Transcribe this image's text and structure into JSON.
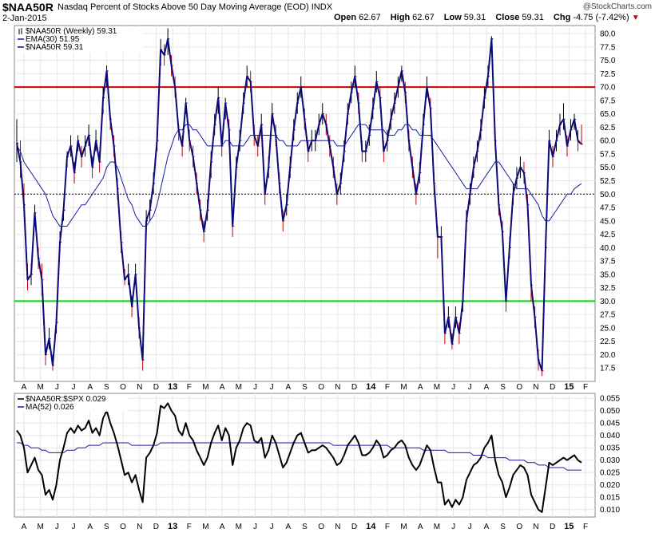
{
  "header": {
    "ticker": "$NAA50R",
    "description": "Nasdaq Percent of Stocks Above 50 Day Moving Average (EOD)",
    "exchange": "INDX",
    "date": "2-Jan-2015",
    "copyright": "@StockCharts.com",
    "open_label": "Open",
    "open": "62.67",
    "high_label": "High",
    "high": "62.67",
    "low_label": "Low",
    "low": "59.31",
    "close_label": "Close",
    "close": "59.31",
    "chg_label": "Chg",
    "chg": "-4.75 (-7.42%)",
    "chg_arrow": "▼"
  },
  "colors": {
    "price": "#0a0a7a",
    "up_bar": "#000000",
    "down_bar": "#cc0000",
    "ema": "#1a1a9e",
    "overbought": "#cc0000",
    "oversold": "#00dd00",
    "ratio": "#000000",
    "ma": "#1a1a9e"
  },
  "chart_data": [
    {
      "type": "line",
      "title": "$NAA50R (Weekly) 59.31",
      "legend": [
        {
          "label": "$NAA50R (Weekly) 59.31",
          "kind": "ohlc"
        },
        {
          "label": "EMA(30) 51.95",
          "kind": "line"
        },
        {
          "label": "$NAA50R 59.31",
          "kind": "line"
        }
      ],
      "ylim": [
        15,
        81.5
      ],
      "yticks": [
        17.5,
        20,
        22.5,
        25,
        27.5,
        30,
        32.5,
        35,
        37.5,
        40,
        42.5,
        45,
        47.5,
        50,
        52.5,
        55,
        57.5,
        60,
        62.5,
        65,
        67.5,
        70,
        72.5,
        75,
        77.5,
        80
      ],
      "ytick_labels": [
        "17.5",
        "20.0",
        "22.5",
        "25.0",
        "27.5",
        "30.0",
        "32.5",
        "35.0",
        "37.5",
        "40.0",
        "42.5",
        "45.0",
        "47.5",
        "50.0",
        "52.5",
        "55.0",
        "57.5",
        "60.0",
        "62.5",
        "65.0",
        "67.5",
        "70.0",
        "72.5",
        "75.0",
        "77.5",
        "80.0"
      ],
      "reference_lines": [
        {
          "value": 70,
          "style": "overbought"
        },
        {
          "value": 50,
          "style": "dashed"
        },
        {
          "value": 30,
          "style": "oversold"
        }
      ],
      "x_labels": [
        "A",
        "M",
        "J",
        "J",
        "A",
        "S",
        "O",
        "N",
        "D",
        "13",
        "F",
        "M",
        "A",
        "M",
        "J",
        "J",
        "A",
        "S",
        "O",
        "N",
        "D",
        "14",
        "F",
        "M",
        "A",
        "M",
        "J",
        "J",
        "A",
        "S",
        "O",
        "N",
        "D",
        "15",
        "F"
      ],
      "close": [
        59.5,
        56,
        48,
        34,
        35,
        46.5,
        38,
        34,
        20,
        23,
        18,
        26,
        41,
        47,
        57,
        59,
        54,
        60,
        57,
        59,
        61,
        55,
        60,
        56,
        68,
        73,
        64,
        59,
        51,
        41,
        34,
        35,
        29,
        35,
        25,
        19,
        45,
        47,
        52,
        60,
        77,
        76,
        79,
        74,
        70,
        62,
        59,
        67,
        60,
        57,
        52,
        47,
        43,
        47,
        56,
        63,
        68,
        59,
        67,
        62,
        44,
        55,
        60,
        67,
        72,
        71,
        61,
        59,
        63,
        50,
        55,
        65,
        61,
        52,
        45,
        48,
        55,
        62,
        67,
        70,
        64,
        58,
        60,
        60,
        63,
        65,
        63,
        59,
        55,
        50,
        52,
        58,
        65,
        69,
        72,
        67,
        58,
        58,
        61,
        66,
        71,
        68,
        58,
        60,
        64,
        67,
        70,
        73,
        69,
        60,
        55,
        50,
        54,
        63,
        70,
        66,
        52,
        42,
        42,
        24,
        27,
        22,
        27,
        24,
        30,
        45,
        50,
        55,
        58,
        62,
        68,
        72,
        79,
        60,
        48,
        43,
        30,
        40,
        50,
        53,
        55,
        54,
        48,
        33,
        27,
        19,
        17,
        40,
        60,
        57,
        60,
        63,
        64,
        59,
        62,
        64,
        60,
        59.31
      ],
      "high": [
        64,
        60,
        52,
        37,
        37,
        48,
        40,
        37,
        22,
        25,
        20,
        28,
        43,
        48,
        58,
        61,
        56,
        61,
        59,
        61,
        63,
        57,
        62,
        58,
        70,
        74,
        65,
        61,
        53,
        43,
        36,
        37,
        31,
        37,
        27,
        21,
        47,
        49,
        54,
        62,
        79,
        78,
        81,
        76,
        72,
        63,
        61,
        68,
        62,
        59,
        54,
        49,
        45,
        49,
        58,
        65,
        70,
        61,
        68,
        64,
        46,
        57,
        62,
        69,
        74,
        73,
        63,
        61,
        65,
        52,
        57,
        67,
        63,
        54,
        47,
        50,
        57,
        64,
        69,
        72,
        66,
        60,
        62,
        62,
        65,
        67,
        65,
        61,
        57,
        52,
        54,
        60,
        67,
        71,
        74,
        69,
        60,
        60,
        63,
        68,
        73,
        70,
        60,
        62,
        66,
        69,
        72,
        74,
        71,
        62,
        57,
        52,
        56,
        65,
        72,
        68,
        54,
        44,
        44,
        26,
        29,
        24,
        29,
        26,
        32,
        47,
        52,
        57,
        60,
        64,
        70,
        74,
        79.5,
        62,
        50,
        45,
        32,
        42,
        52,
        55,
        57,
        56,
        50,
        35,
        29,
        21,
        19,
        42,
        62,
        59,
        62,
        65,
        67,
        61,
        64,
        65,
        62,
        63
      ],
      "low": [
        56,
        53,
        46,
        32,
        33,
        44,
        36,
        31,
        18,
        21,
        17,
        24,
        39,
        45,
        55,
        57,
        52,
        58,
        55,
        57,
        59,
        53,
        58,
        54,
        65,
        70,
        62,
        57,
        49,
        39,
        33,
        33,
        27,
        33,
        23,
        17,
        43,
        45,
        50,
        58,
        74,
        74,
        76,
        72,
        68,
        60,
        57,
        65,
        58,
        55,
        50,
        45,
        41,
        45,
        53,
        61,
        65,
        57,
        64,
        59,
        42,
        53,
        58,
        65,
        70,
        69,
        59,
        57,
        61,
        48,
        53,
        63,
        59,
        50,
        43,
        46,
        53,
        60,
        65,
        68,
        62,
        56,
        58,
        58,
        61,
        63,
        61,
        57,
        53,
        48,
        50,
        56,
        63,
        67,
        70,
        65,
        56,
        56,
        59,
        64,
        69,
        66,
        56,
        58,
        62,
        65,
        68,
        71,
        67,
        58,
        53,
        48,
        52,
        61,
        68,
        64,
        50,
        38,
        40,
        22,
        25,
        21,
        25,
        22,
        28,
        43,
        48,
        53,
        56,
        60,
        66,
        70,
        77,
        58,
        46,
        41,
        28,
        38,
        48,
        51,
        53,
        52,
        46,
        30,
        25,
        17,
        16,
        38,
        58,
        55,
        58,
        61,
        62,
        57,
        60,
        62,
        58,
        59.31
      ],
      "ema30": [
        59,
        58,
        56,
        55,
        54,
        53,
        52,
        51,
        50,
        48,
        46,
        45,
        44,
        44,
        44,
        45,
        46,
        47,
        48,
        48,
        49,
        50,
        51,
        52,
        53,
        55,
        56,
        56,
        55,
        53,
        51,
        49,
        48,
        46,
        45,
        44,
        44,
        45,
        46,
        48,
        51,
        54,
        57,
        59,
        61,
        62,
        62,
        63,
        63,
        62,
        62,
        61,
        60,
        59,
        59,
        59,
        59,
        59,
        60,
        60,
        59,
        59,
        59,
        59,
        60,
        61,
        61,
        61,
        61,
        61,
        61,
        61,
        61,
        60,
        60,
        59,
        59,
        59,
        59,
        60,
        60,
        60,
        60,
        60,
        60,
        60,
        60,
        60,
        60,
        59,
        59,
        59,
        60,
        61,
        62,
        63,
        63,
        63,
        62,
        62,
        62,
        62,
        62,
        61,
        61,
        61,
        62,
        62,
        63,
        63,
        62,
        62,
        61,
        61,
        61,
        61,
        60,
        59,
        58,
        57,
        56,
        55,
        54,
        53,
        52,
        51,
        51,
        51,
        51,
        52,
        53,
        54,
        55,
        56,
        56,
        55,
        54,
        53,
        52,
        51,
        51,
        51,
        51,
        50,
        49,
        48,
        46,
        45,
        45,
        46,
        47,
        48,
        49,
        50,
        50,
        51,
        51.5,
        51.95
      ]
    },
    {
      "type": "line",
      "title": "$NAA50R:$SPX 0.029",
      "legend": [
        {
          "label": "$NAA50R:$SPX 0.029",
          "kind": "line"
        },
        {
          "label": "MA(52) 0.026",
          "kind": "line"
        }
      ],
      "ylim": [
        0.007,
        0.057
      ],
      "yticks": [
        0.01,
        0.015,
        0.02,
        0.025,
        0.03,
        0.035,
        0.04,
        0.045,
        0.05,
        0.055
      ],
      "ytick_labels": [
        "0.010",
        "0.015",
        "0.020",
        "0.025",
        "0.030",
        "0.035",
        "0.040",
        "0.045",
        "0.050",
        "0.055"
      ],
      "x_labels": [
        "A",
        "M",
        "J",
        "J",
        "A",
        "S",
        "O",
        "N",
        "D",
        "13",
        "F",
        "M",
        "A",
        "M",
        "J",
        "J",
        "A",
        "S",
        "O",
        "N",
        "D",
        "14",
        "F",
        "M",
        "A",
        "M",
        "J",
        "J",
        "A",
        "S",
        "O",
        "N",
        "D",
        "15",
        "F"
      ],
      "ratio": [
        0.042,
        0.04,
        0.035,
        0.025,
        0.028,
        0.031,
        0.026,
        0.024,
        0.016,
        0.018,
        0.014,
        0.02,
        0.03,
        0.035,
        0.041,
        0.043,
        0.041,
        0.044,
        0.042,
        0.043,
        0.046,
        0.041,
        0.043,
        0.04,
        0.047,
        0.05,
        0.045,
        0.041,
        0.036,
        0.03,
        0.024,
        0.025,
        0.021,
        0.024,
        0.018,
        0.013,
        0.031,
        0.033,
        0.036,
        0.041,
        0.052,
        0.051,
        0.053,
        0.05,
        0.048,
        0.042,
        0.04,
        0.045,
        0.04,
        0.038,
        0.034,
        0.031,
        0.028,
        0.031,
        0.037,
        0.041,
        0.044,
        0.038,
        0.043,
        0.04,
        0.028,
        0.035,
        0.038,
        0.043,
        0.045,
        0.044,
        0.038,
        0.037,
        0.039,
        0.031,
        0.034,
        0.04,
        0.037,
        0.032,
        0.027,
        0.029,
        0.033,
        0.037,
        0.04,
        0.041,
        0.037,
        0.033,
        0.034,
        0.034,
        0.035,
        0.036,
        0.035,
        0.033,
        0.031,
        0.028,
        0.029,
        0.032,
        0.036,
        0.038,
        0.04,
        0.037,
        0.032,
        0.032,
        0.033,
        0.035,
        0.038,
        0.036,
        0.031,
        0.032,
        0.034,
        0.035,
        0.037,
        0.038,
        0.036,
        0.031,
        0.028,
        0.026,
        0.028,
        0.032,
        0.036,
        0.034,
        0.027,
        0.021,
        0.021,
        0.012,
        0.014,
        0.011,
        0.014,
        0.012,
        0.015,
        0.022,
        0.025,
        0.028,
        0.029,
        0.031,
        0.035,
        0.037,
        0.04,
        0.03,
        0.024,
        0.021,
        0.015,
        0.019,
        0.024,
        0.026,
        0.028,
        0.027,
        0.024,
        0.016,
        0.013,
        0.01,
        0.009,
        0.019,
        0.029,
        0.028,
        0.029,
        0.03,
        0.031,
        0.03,
        0.031,
        0.032,
        0.03,
        0.029
      ],
      "ma52": [
        0.037,
        0.037,
        0.036,
        0.036,
        0.035,
        0.035,
        0.035,
        0.034,
        0.034,
        0.033,
        0.033,
        0.033,
        0.033,
        0.033,
        0.034,
        0.034,
        0.034,
        0.035,
        0.035,
        0.035,
        0.036,
        0.036,
        0.036,
        0.036,
        0.037,
        0.037,
        0.037,
        0.037,
        0.037,
        0.037,
        0.037,
        0.037,
        0.036,
        0.036,
        0.036,
        0.036,
        0.036,
        0.036,
        0.036,
        0.036,
        0.037,
        0.037,
        0.037,
        0.037,
        0.037,
        0.037,
        0.037,
        0.037,
        0.037,
        0.037,
        0.037,
        0.037,
        0.037,
        0.037,
        0.037,
        0.037,
        0.037,
        0.037,
        0.037,
        0.037,
        0.037,
        0.037,
        0.037,
        0.037,
        0.037,
        0.037,
        0.037,
        0.037,
        0.037,
        0.037,
        0.037,
        0.037,
        0.037,
        0.037,
        0.037,
        0.037,
        0.037,
        0.037,
        0.037,
        0.037,
        0.037,
        0.037,
        0.037,
        0.037,
        0.037,
        0.037,
        0.037,
        0.037,
        0.036,
        0.036,
        0.036,
        0.036,
        0.036,
        0.036,
        0.036,
        0.036,
        0.036,
        0.036,
        0.036,
        0.036,
        0.036,
        0.036,
        0.036,
        0.036,
        0.035,
        0.035,
        0.035,
        0.035,
        0.035,
        0.035,
        0.035,
        0.035,
        0.035,
        0.034,
        0.034,
        0.034,
        0.034,
        0.034,
        0.034,
        0.034,
        0.033,
        0.033,
        0.033,
        0.033,
        0.033,
        0.033,
        0.033,
        0.032,
        0.032,
        0.032,
        0.032,
        0.031,
        0.031,
        0.031,
        0.031,
        0.031,
        0.031,
        0.03,
        0.03,
        0.03,
        0.03,
        0.03,
        0.029,
        0.029,
        0.029,
        0.028,
        0.028,
        0.028,
        0.027,
        0.027,
        0.027,
        0.027,
        0.027,
        0.026,
        0.026,
        0.026,
        0.026,
        0.026
      ]
    }
  ]
}
